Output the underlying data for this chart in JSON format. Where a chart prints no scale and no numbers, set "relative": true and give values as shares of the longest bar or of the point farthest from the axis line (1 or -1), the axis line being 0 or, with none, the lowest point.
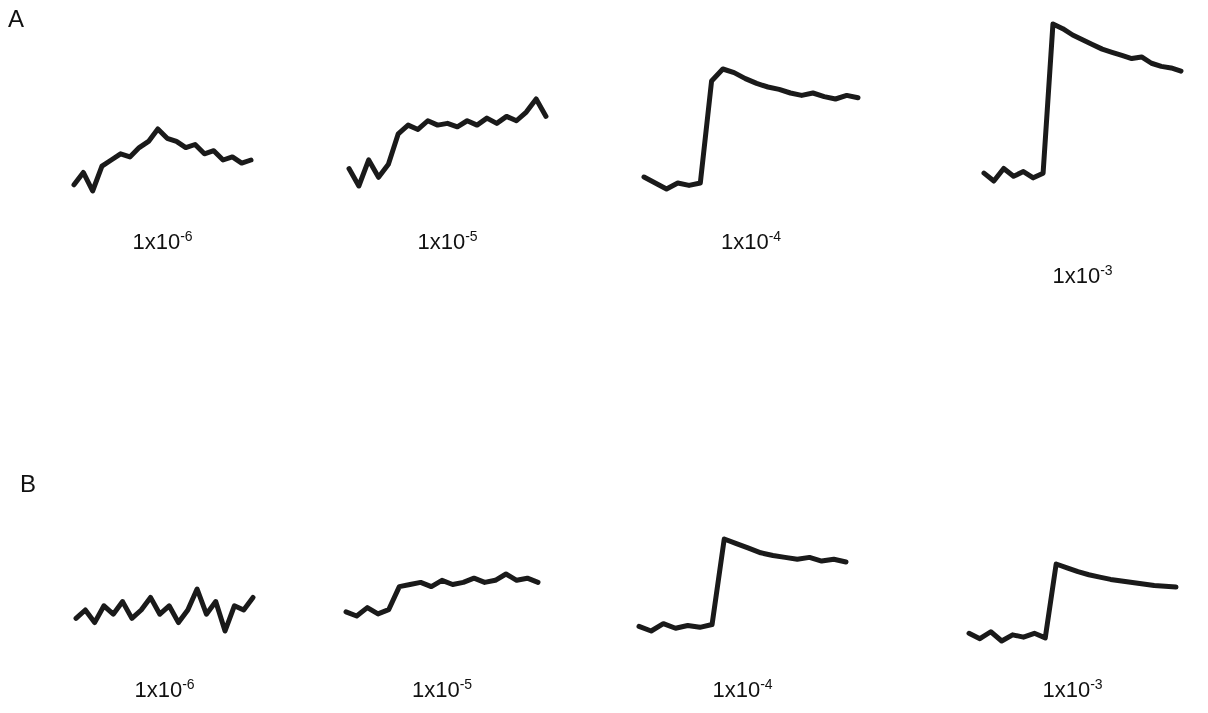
{
  "chart_data": [
    {
      "type": "line",
      "relative": true,
      "marker": "none",
      "annotations": [
        "A"
      ],
      "xlabel": "1x10$^{-6}$",
      "categories": [
        null,
        null,
        null,
        null,
        null,
        null,
        null,
        null,
        null,
        null,
        null,
        null,
        null,
        null,
        null,
        null,
        null,
        null,
        null,
        null
      ],
      "series": [
        {
          "color": "#1a1a1a",
          "values": [
            0.1,
            0.3,
            0,
            0.4,
            0.5,
            0.6,
            0.55,
            0.7,
            0.8,
            1,
            0.85,
            0.8,
            0.7,
            0.75,
            0.6,
            0.65,
            0.5,
            0.55,
            0.45,
            0.5
          ]
        }
      ]
    },
    {
      "type": "line",
      "relative": true,
      "marker": "none",
      "xlabel": "1x10$^{-5}$",
      "categories": [
        null,
        null,
        null,
        null,
        null,
        null,
        null,
        null,
        null,
        null,
        null,
        null,
        null,
        null,
        null,
        null,
        null,
        null,
        null,
        null,
        null
      ],
      "series": [
        {
          "color": "#1a1a1a",
          "values": [
            0.2,
            0,
            0.3,
            0.1,
            0.25,
            0.6,
            0.7,
            0.65,
            0.75,
            0.7,
            0.72,
            0.68,
            0.75,
            0.7,
            0.78,
            0.72,
            0.8,
            0.75,
            0.85,
            1,
            0.8
          ]
        }
      ]
    },
    {
      "type": "line",
      "relative": true,
      "marker": "none",
      "xlabel": "1x10$^{-4}$",
      "categories": [
        null,
        null,
        null,
        null,
        null,
        null,
        null,
        null,
        null,
        null,
        null,
        null,
        null,
        null,
        null,
        null,
        null,
        null,
        null,
        null
      ],
      "series": [
        {
          "color": "#1a1a1a",
          "values": [
            0.1,
            0.05,
            0,
            0.05,
            0.03,
            0.05,
            0.9,
            1,
            0.97,
            0.92,
            0.88,
            0.85,
            0.83,
            0.8,
            0.78,
            0.8,
            0.77,
            0.75,
            0.78,
            0.76
          ]
        }
      ]
    },
    {
      "type": "line",
      "relative": true,
      "marker": "none",
      "xlabel": "1x10$^{-3}$",
      "categories": [
        null,
        null,
        null,
        null,
        null,
        null,
        null,
        null,
        null,
        null,
        null,
        null,
        null,
        null,
        null,
        null,
        null,
        null,
        null,
        null,
        null
      ],
      "series": [
        {
          "color": "#1a1a1a",
          "values": [
            0.05,
            0,
            0.08,
            0.03,
            0.06,
            0.02,
            0.05,
            1,
            0.97,
            0.93,
            0.9,
            0.87,
            0.84,
            0.82,
            0.8,
            0.78,
            0.79,
            0.75,
            0.73,
            0.72,
            0.7
          ]
        }
      ]
    },
    {
      "type": "line",
      "relative": true,
      "marker": "none",
      "annotations": [
        "B"
      ],
      "xlabel": "1x10$^{-6}$",
      "categories": [
        null,
        null,
        null,
        null,
        null,
        null,
        null,
        null,
        null,
        null,
        null,
        null,
        null,
        null,
        null,
        null,
        null,
        null,
        null,
        null
      ],
      "series": [
        {
          "color": "#1a1a1a",
          "values": [
            0.3,
            0.5,
            0.2,
            0.6,
            0.4,
            0.7,
            0.3,
            0.5,
            0.8,
            0.4,
            0.6,
            0.2,
            0.5,
            1,
            0.4,
            0.7,
            0,
            0.6,
            0.5,
            0.8
          ]
        }
      ]
    },
    {
      "type": "line",
      "relative": true,
      "marker": "none",
      "xlabel": "1x10$^{-5}$",
      "categories": [
        null,
        null,
        null,
        null,
        null,
        null,
        null,
        null,
        null,
        null,
        null,
        null,
        null,
        null,
        null,
        null,
        null,
        null,
        null
      ],
      "series": [
        {
          "color": "#1a1a1a",
          "values": [
            0.1,
            0,
            0.2,
            0.05,
            0.15,
            0.7,
            0.75,
            0.8,
            0.7,
            0.85,
            0.75,
            0.8,
            0.9,
            0.8,
            0.85,
            1,
            0.85,
            0.9,
            0.8
          ]
        }
      ]
    },
    {
      "type": "line",
      "relative": true,
      "marker": "none",
      "xlabel": "1x10$^{-4}$",
      "categories": [
        null,
        null,
        null,
        null,
        null,
        null,
        null,
        null,
        null,
        null,
        null,
        null,
        null,
        null,
        null,
        null,
        null,
        null
      ],
      "series": [
        {
          "color": "#1a1a1a",
          "values": [
            0.05,
            0,
            0.08,
            0.03,
            0.06,
            0.04,
            0.07,
            1,
            0.95,
            0.9,
            0.85,
            0.82,
            0.8,
            0.78,
            0.8,
            0.76,
            0.78,
            0.75
          ]
        }
      ]
    },
    {
      "type": "line",
      "relative": true,
      "marker": "none",
      "xlabel": "1x10$^{-3}$",
      "categories": [
        null,
        null,
        null,
        null,
        null,
        null,
        null,
        null,
        null,
        null,
        null,
        null,
        null,
        null,
        null,
        null,
        null,
        null,
        null,
        null
      ],
      "series": [
        {
          "color": "#1a1a1a",
          "values": [
            0.1,
            0.03,
            0.12,
            0,
            0.08,
            0.05,
            0.1,
            0.04,
            1,
            0.95,
            0.9,
            0.86,
            0.83,
            0.8,
            0.78,
            0.76,
            0.74,
            0.72,
            0.71,
            0.7
          ]
        }
      ]
    }
  ]
}
